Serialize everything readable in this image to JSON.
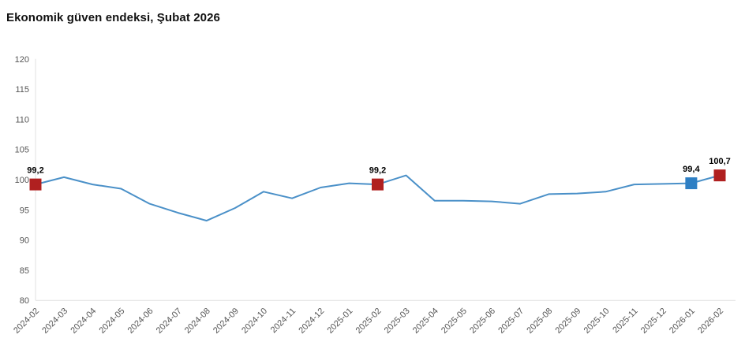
{
  "title": "Ekonomik güven endeksi, Şubat 2026",
  "colors": {
    "line": "#4a90c8",
    "marker_red": "#b02020",
    "marker_blue": "#2e7fc4",
    "axis": "#e2e2e2",
    "tick_text": "#555555",
    "label_text": "#000000",
    "background": "#ffffff"
  },
  "chart_data": {
    "type": "line",
    "title": "Ekonomik güven endeksi, Şubat 2026",
    "xlabel": "",
    "ylabel": "",
    "ylim": [
      80,
      120
    ],
    "ytick_step": 5,
    "ytick_labels": [
      "80",
      "85",
      "90",
      "95",
      "100",
      "105",
      "110",
      "115",
      "120"
    ],
    "grid": false,
    "legend": "none",
    "categories": [
      "2024-02",
      "2024-03",
      "2024-04",
      "2024-05",
      "2024-06",
      "2024-07",
      "2024-08",
      "2024-09",
      "2024-10",
      "2024-11",
      "2024-12",
      "2025-01",
      "2025-02",
      "2025-03",
      "2025-04",
      "2025-05",
      "2025-06",
      "2025-07",
      "2025-08",
      "2025-09",
      "2025-10",
      "2025-11",
      "2025-12",
      "2026-01",
      "2026-02"
    ],
    "values": [
      99.2,
      100.4,
      99.2,
      98.5,
      96.0,
      94.5,
      93.2,
      95.3,
      98.0,
      96.9,
      98.7,
      99.4,
      99.2,
      100.7,
      96.5,
      96.5,
      96.4,
      96.0,
      97.6,
      97.7,
      98.0,
      99.2,
      99.3,
      99.4,
      100.7
    ],
    "annotated_points": [
      {
        "index": 0,
        "category": "2024-02",
        "label": "99,2",
        "marker": "square",
        "color_key": "marker_red"
      },
      {
        "index": 12,
        "category": "2025-02",
        "label": "99,2",
        "marker": "square",
        "color_key": "marker_red"
      },
      {
        "index": 23,
        "category": "2026-01",
        "label": "99,4",
        "marker": "square",
        "color_key": "marker_blue"
      },
      {
        "index": 24,
        "category": "2026-02",
        "label": "100,7",
        "marker": "square",
        "color_key": "marker_red"
      }
    ]
  }
}
